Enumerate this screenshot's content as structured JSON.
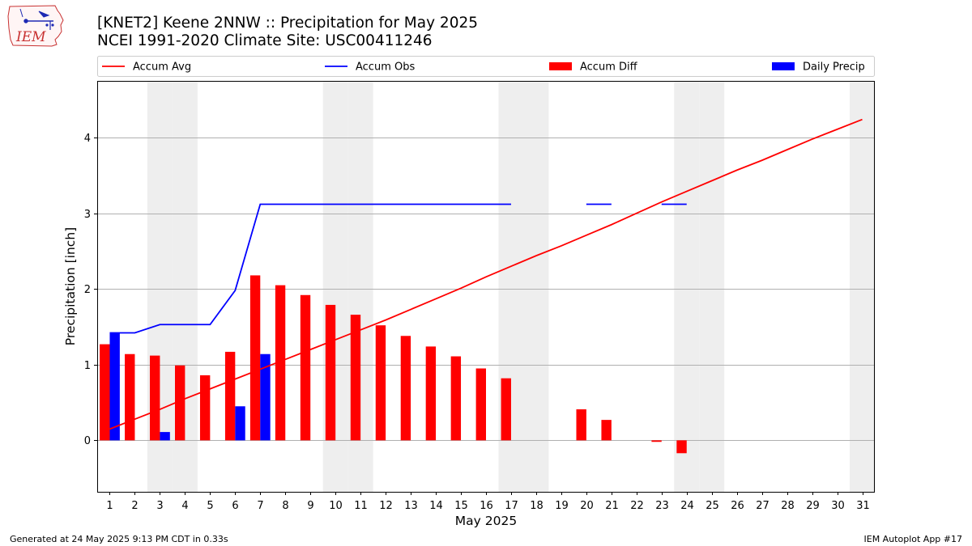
{
  "header": {
    "title": "[KNET2] Keene 2NNW :: Precipitation for May 2025",
    "subtitle": "NCEI 1991-2020 Climate Site: USC00411246",
    "logo_text": "IEM"
  },
  "footer": {
    "generated": "Generated at 24 May 2025 9:13 PM CDT in 0.33s",
    "app": "IEM Autoplot App #17"
  },
  "colors": {
    "avg": "#ff0000",
    "obs": "#0000ff",
    "diff": "#ff0000",
    "daily": "#0000ff",
    "weekend": "#eeeeee",
    "grid": "#b0b0b0"
  },
  "chart_data": {
    "type": "bar",
    "xlabel": "May 2025",
    "ylabel": "Precipitation [inch]",
    "xlim": [
      0.5,
      31.5
    ],
    "ylim": [
      -0.68,
      4.75
    ],
    "grid": "y",
    "legend_position": "top",
    "legend": [
      "Accum Avg",
      "Accum Obs",
      "Accum Diff",
      "Daily Precip"
    ],
    "x": [
      1,
      2,
      3,
      4,
      5,
      6,
      7,
      8,
      9,
      10,
      11,
      12,
      13,
      14,
      15,
      16,
      17,
      18,
      19,
      20,
      21,
      22,
      23,
      24,
      25,
      26,
      27,
      28,
      29,
      30,
      31
    ],
    "x_ticks": [
      "1",
      "2",
      "3",
      "4",
      "5",
      "6",
      "7",
      "8",
      "9",
      "10",
      "11",
      "12",
      "13",
      "14",
      "15",
      "16",
      "17",
      "18",
      "19",
      "20",
      "21",
      "22",
      "23",
      "24",
      "25",
      "26",
      "27",
      "28",
      "29",
      "30",
      "31"
    ],
    "y_ticks": [
      0,
      1,
      2,
      3,
      4
    ],
    "shaded_weekend_days": [
      3,
      4,
      10,
      11,
      17,
      18,
      24,
      25,
      31
    ],
    "series": [
      {
        "name": "Accum Avg",
        "kind": "line",
        "values": [
          0.15,
          0.28,
          0.41,
          0.55,
          0.68,
          0.81,
          0.94,
          1.07,
          1.2,
          1.33,
          1.46,
          1.59,
          1.73,
          1.87,
          2.01,
          2.16,
          2.3,
          2.44,
          2.57,
          2.71,
          2.85,
          3.0,
          3.15,
          3.29,
          3.43,
          3.57,
          3.7,
          3.84,
          3.98,
          4.11,
          4.24
        ]
      },
      {
        "name": "Accum Obs",
        "kind": "line",
        "values": [
          1.42,
          1.42,
          1.53,
          1.53,
          1.53,
          1.98,
          3.12,
          3.12,
          3.12,
          3.12,
          3.12,
          3.12,
          3.12,
          3.12,
          3.12,
          3.12,
          3.12,
          null,
          null,
          3.12,
          3.12,
          null,
          3.12,
          3.12,
          null,
          null,
          null,
          null,
          null,
          null,
          null
        ]
      },
      {
        "name": "Accum Diff",
        "kind": "bar",
        "values": [
          1.27,
          1.14,
          1.12,
          0.99,
          0.86,
          1.17,
          2.18,
          2.05,
          1.92,
          1.79,
          1.66,
          1.52,
          1.38,
          1.24,
          1.11,
          0.95,
          0.82,
          null,
          null,
          0.41,
          0.27,
          null,
          -0.02,
          -0.17,
          null,
          null,
          null,
          null,
          null,
          null,
          null
        ]
      },
      {
        "name": "Daily Precip",
        "kind": "bar",
        "values": [
          1.42,
          0,
          0.11,
          0,
          0,
          0.45,
          1.14,
          0,
          0,
          0,
          0,
          0,
          0,
          0,
          0,
          0,
          0,
          null,
          null,
          0,
          0,
          null,
          0,
          0,
          null,
          null,
          null,
          null,
          null,
          null,
          null
        ]
      }
    ]
  }
}
